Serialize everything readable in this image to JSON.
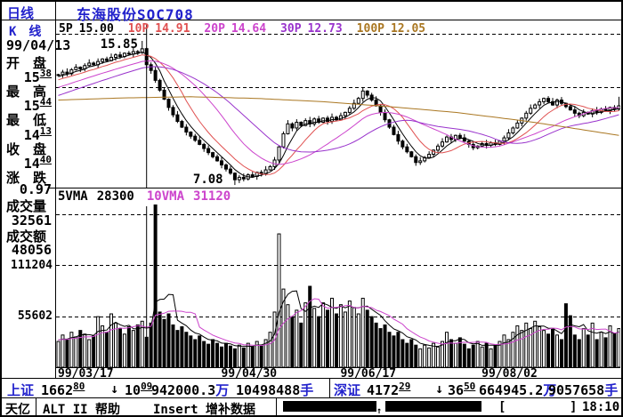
{
  "title_bar": {
    "mode": "日线",
    "stock": "东海股份SOC708"
  },
  "ma_header": {
    "k_label": "K　线",
    "items": [
      {
        "label": "5P",
        "value": "15.00",
        "color": "#000000"
      },
      {
        "label": "10P",
        "value": "14.91",
        "color": "#e05050"
      },
      {
        "label": "20P",
        "value": "14.64",
        "color": "#cc44cc"
      },
      {
        "label": "30P",
        "value": "12.73",
        "color": "#9933cc"
      },
      {
        "label": "100P",
        "value": "12.05",
        "color": "#aa7722"
      }
    ]
  },
  "left_panel": {
    "date": "99/04/13",
    "rows": [
      {
        "label": "开　盘",
        "main": "15",
        "sup": "38"
      },
      {
        "label": "最　高",
        "main": "15",
        "sup": "44"
      },
      {
        "label": "最　低",
        "main": "14",
        "sup": "13"
      },
      {
        "label": "收　盘",
        "main": "14",
        "sup": "40"
      },
      {
        "label": "涨　跌",
        "main": "0.97",
        "sup": ""
      }
    ],
    "volume_label": "成交量",
    "volume_value": "32561",
    "amount_label": "成交额",
    "amount_value": "48056",
    "vol_axis_labels": [
      "111204",
      "55602"
    ]
  },
  "vma_header": {
    "items": [
      {
        "label": "5VMA",
        "value": "28300",
        "color": "#000000"
      },
      {
        "label": "10VMA",
        "value": "31120",
        "color": "#cc44cc"
      }
    ]
  },
  "chart_data": [
    {
      "type": "candlestick",
      "title": "东海股份SOC708 daily K-line",
      "ylabel": "price",
      "price_min": 7.08,
      "price_max": 15.85,
      "grid_prices": [
        16.28,
        13.04
      ],
      "cursor_index": 20,
      "cursor_ohlc": {
        "open": 15.38,
        "high": 15.44,
        "low": 14.13,
        "close": 14.4,
        "change": -0.97
      },
      "closes": [
        13.8,
        13.95,
        13.85,
        14.1,
        14.25,
        14.15,
        14.35,
        14.5,
        14.4,
        14.6,
        14.75,
        14.65,
        14.85,
        15.0,
        14.9,
        15.1,
        15.05,
        15.2,
        15.15,
        15.37,
        14.4,
        14.05,
        13.45,
        12.85,
        12.3,
        11.8,
        11.35,
        10.95,
        10.6,
        10.3,
        10.05,
        9.8,
        9.55,
        9.3,
        9.05,
        8.8,
        8.55,
        8.3,
        8.05,
        7.8,
        7.4,
        7.55,
        7.45,
        7.7,
        7.6,
        7.85,
        7.75,
        8.0,
        8.2,
        8.6,
        9.4,
        10.2,
        10.8,
        10.55,
        10.9,
        10.7,
        11.0,
        10.8,
        11.1,
        10.9,
        11.15,
        10.95,
        11.2,
        11.05,
        11.3,
        11.5,
        11.75,
        12.05,
        12.35,
        12.8,
        12.55,
        12.25,
        11.9,
        11.5,
        11.05,
        10.6,
        10.15,
        9.75,
        9.4,
        9.1,
        8.8,
        8.45,
        8.55,
        8.75,
        8.95,
        9.2,
        9.45,
        9.7,
        10.0,
        9.85,
        10.1,
        9.95,
        9.75,
        9.55,
        9.35,
        9.45,
        9.6,
        9.5,
        9.65,
        9.55,
        9.75,
        9.95,
        10.25,
        10.55,
        10.85,
        11.15,
        11.45,
        11.75,
        11.95,
        12.15,
        12.35,
        12.15,
        11.95,
        12.25,
        12.05,
        11.85,
        11.65,
        11.45,
        11.3,
        11.5,
        11.4,
        11.6,
        11.5,
        11.7,
        11.6,
        11.8,
        11.7,
        11.9
      ],
      "pre_closes": [
        11.0,
        11.1,
        11.2,
        11.3,
        11.4,
        11.5,
        11.6,
        11.7,
        11.8,
        11.9,
        12.0,
        12.1,
        12.2,
        12.3,
        12.4,
        12.5,
        12.6,
        12.7,
        12.8,
        12.9,
        13.0,
        13.1,
        13.2,
        13.3,
        13.4,
        13.45,
        13.5,
        13.6,
        13.7,
        13.75
      ],
      "overrides": {
        "19": {
          "h": 15.85
        },
        "20": {
          "o": 15.38,
          "h": 15.44,
          "l": 14.13,
          "c": 14.4
        },
        "40": {
          "l": 7.08
        },
        "127": {
          "h": 12.45
        }
      },
      "annotations": [
        {
          "text": "15.85",
          "price": 15.85,
          "index": 19,
          "kind": "high"
        },
        {
          "text": "7.08",
          "price": 7.08,
          "index": 40,
          "kind": "low"
        }
      ],
      "ma_lines": [
        {
          "period": 5,
          "color": "#000000"
        },
        {
          "period": 10,
          "color": "#e05050"
        },
        {
          "period": 20,
          "color": "#cc44cc"
        },
        {
          "period": 30,
          "color": "#9933cc"
        }
      ],
      "ma100_color": "#aa7722",
      "ma100_anchors": [
        [
          0,
          12.25
        ],
        [
          15,
          12.38
        ],
        [
          30,
          12.45
        ],
        [
          45,
          12.35
        ],
        [
          60,
          12.15
        ],
        [
          75,
          11.85
        ],
        [
          90,
          11.5
        ],
        [
          105,
          11.0
        ],
        [
          115,
          10.6
        ],
        [
          127,
          10.1
        ]
      ],
      "x_labels": [
        {
          "label": "99/03/17",
          "index": 0
        },
        {
          "label": "99/04/30",
          "index": 37
        },
        {
          "label": "99/06/17",
          "index": 64
        },
        {
          "label": "99/08/02",
          "index": 96
        }
      ]
    },
    {
      "type": "bar",
      "title": "volume",
      "grid_values": [
        55602,
        111204,
        166806
      ],
      "volumes": [
        28000,
        35000,
        30000,
        38000,
        33000,
        40000,
        36000,
        30000,
        34000,
        55000,
        45000,
        38000,
        58000,
        48000,
        42000,
        36000,
        44000,
        40000,
        46000,
        50000,
        32561,
        48000,
        178000,
        60000,
        52000,
        58000,
        46000,
        40000,
        44000,
        38000,
        34000,
        30000,
        34000,
        28000,
        25000,
        30000,
        26000,
        22000,
        26000,
        23000,
        20000,
        24000,
        21000,
        26000,
        22000,
        28000,
        24000,
        30000,
        38000,
        60000,
        145000,
        85000,
        68000,
        55000,
        62000,
        48000,
        70000,
        88000,
        64000,
        55000,
        70000,
        62000,
        75000,
        58000,
        68000,
        60000,
        72000,
        65000,
        58000,
        75000,
        62000,
        55000,
        48000,
        42000,
        46000,
        38000,
        34000,
        38000,
        30000,
        26000,
        30000,
        24000,
        20000,
        24000,
        21000,
        26000,
        22000,
        28000,
        38000,
        30000,
        26000,
        32000,
        25000,
        20000,
        24000,
        28000,
        22000,
        26000,
        20000,
        24000,
        28000,
        35000,
        30000,
        38000,
        45000,
        40000,
        48000,
        42000,
        50000,
        44000,
        40000,
        36000,
        42000,
        35000,
        30000,
        69000,
        56000,
        35000,
        30000,
        42000,
        35000,
        48000,
        30000,
        38000,
        32000,
        45000,
        36000,
        42000
      ],
      "vma_lines": [
        {
          "period": 5,
          "color": "#000000"
        },
        {
          "period": 10,
          "color": "#cc44cc"
        }
      ]
    }
  ],
  "status_bar": {
    "sh": {
      "name": "上证",
      "index": {
        "main": "1662",
        "sup": "80"
      },
      "arrow": "↓",
      "change": {
        "main": "10",
        "sup": "09"
      },
      "amount": "942000.3",
      "amount_unit": "万",
      "volume": "10498488",
      "volume_unit": "手"
    },
    "sz": {
      "name": "深证",
      "index": {
        "main": "4172",
        "sup": "29"
      },
      "arrow": "↓",
      "change": {
        "main": "36",
        "sup": "50"
      },
      "amount": "664945.2",
      "amount_unit": "万",
      "volume": "9057658",
      "volume_unit": "手"
    }
  },
  "bottom_bar": {
    "brand": "天亿",
    "help": "ALT II 帮助",
    "insert": "Insert 增补数据",
    "arrow": "↑",
    "bracket_open": "[",
    "bracket_close": "]",
    "time": "18:10"
  },
  "colors": {
    "blue": "#2222cc",
    "red": "#e05050",
    "magenta": "#cc44cc",
    "violet": "#9933cc",
    "brown": "#aa7722"
  }
}
